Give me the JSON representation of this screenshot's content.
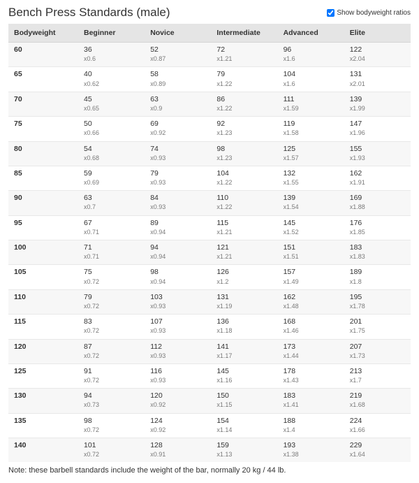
{
  "title": "Bench Press Standards (male)",
  "toggle_label": "Show bodyweight ratios",
  "toggle_checked": true,
  "columns": [
    "Bodyweight",
    "Beginner",
    "Novice",
    "Intermediate",
    "Advanced",
    "Elite"
  ],
  "rows": [
    {
      "bw": "60",
      "cells": [
        [
          "36",
          "x0.6"
        ],
        [
          "52",
          "x0.87"
        ],
        [
          "72",
          "x1.21"
        ],
        [
          "96",
          "x1.6"
        ],
        [
          "122",
          "x2.04"
        ]
      ]
    },
    {
      "bw": "65",
      "cells": [
        [
          "40",
          "x0.62"
        ],
        [
          "58",
          "x0.89"
        ],
        [
          "79",
          "x1.22"
        ],
        [
          "104",
          "x1.6"
        ],
        [
          "131",
          "x2.01"
        ]
      ]
    },
    {
      "bw": "70",
      "cells": [
        [
          "45",
          "x0.65"
        ],
        [
          "63",
          "x0.9"
        ],
        [
          "86",
          "x1.22"
        ],
        [
          "111",
          "x1.59"
        ],
        [
          "139",
          "x1.99"
        ]
      ]
    },
    {
      "bw": "75",
      "cells": [
        [
          "50",
          "x0.66"
        ],
        [
          "69",
          "x0.92"
        ],
        [
          "92",
          "x1.23"
        ],
        [
          "119",
          "x1.58"
        ],
        [
          "147",
          "x1.96"
        ]
      ]
    },
    {
      "bw": "80",
      "cells": [
        [
          "54",
          "x0.68"
        ],
        [
          "74",
          "x0.93"
        ],
        [
          "98",
          "x1.23"
        ],
        [
          "125",
          "x1.57"
        ],
        [
          "155",
          "x1.93"
        ]
      ]
    },
    {
      "bw": "85",
      "cells": [
        [
          "59",
          "x0.69"
        ],
        [
          "79",
          "x0.93"
        ],
        [
          "104",
          "x1.22"
        ],
        [
          "132",
          "x1.55"
        ],
        [
          "162",
          "x1.91"
        ]
      ]
    },
    {
      "bw": "90",
      "cells": [
        [
          "63",
          "x0.7"
        ],
        [
          "84",
          "x0.93"
        ],
        [
          "110",
          "x1.22"
        ],
        [
          "139",
          "x1.54"
        ],
        [
          "169",
          "x1.88"
        ]
      ]
    },
    {
      "bw": "95",
      "cells": [
        [
          "67",
          "x0.71"
        ],
        [
          "89",
          "x0.94"
        ],
        [
          "115",
          "x1.21"
        ],
        [
          "145",
          "x1.52"
        ],
        [
          "176",
          "x1.85"
        ]
      ]
    },
    {
      "bw": "100",
      "cells": [
        [
          "71",
          "x0.71"
        ],
        [
          "94",
          "x0.94"
        ],
        [
          "121",
          "x1.21"
        ],
        [
          "151",
          "x1.51"
        ],
        [
          "183",
          "x1.83"
        ]
      ]
    },
    {
      "bw": "105",
      "cells": [
        [
          "75",
          "x0.72"
        ],
        [
          "98",
          "x0.94"
        ],
        [
          "126",
          "x1.2"
        ],
        [
          "157",
          "x1.49"
        ],
        [
          "189",
          "x1.8"
        ]
      ]
    },
    {
      "bw": "110",
      "cells": [
        [
          "79",
          "x0.72"
        ],
        [
          "103",
          "x0.93"
        ],
        [
          "131",
          "x1.19"
        ],
        [
          "162",
          "x1.48"
        ],
        [
          "195",
          "x1.78"
        ]
      ]
    },
    {
      "bw": "115",
      "cells": [
        [
          "83",
          "x0.72"
        ],
        [
          "107",
          "x0.93"
        ],
        [
          "136",
          "x1.18"
        ],
        [
          "168",
          "x1.46"
        ],
        [
          "201",
          "x1.75"
        ]
      ]
    },
    {
      "bw": "120",
      "cells": [
        [
          "87",
          "x0.72"
        ],
        [
          "112",
          "x0.93"
        ],
        [
          "141",
          "x1.17"
        ],
        [
          "173",
          "x1.44"
        ],
        [
          "207",
          "x1.73"
        ]
      ]
    },
    {
      "bw": "125",
      "cells": [
        [
          "91",
          "x0.72"
        ],
        [
          "116",
          "x0.93"
        ],
        [
          "145",
          "x1.16"
        ],
        [
          "178",
          "x1.43"
        ],
        [
          "213",
          "x1.7"
        ]
      ]
    },
    {
      "bw": "130",
      "cells": [
        [
          "94",
          "x0.73"
        ],
        [
          "120",
          "x0.92"
        ],
        [
          "150",
          "x1.15"
        ],
        [
          "183",
          "x1.41"
        ],
        [
          "219",
          "x1.68"
        ]
      ]
    },
    {
      "bw": "135",
      "cells": [
        [
          "98",
          "x0.72"
        ],
        [
          "124",
          "x0.92"
        ],
        [
          "154",
          "x1.14"
        ],
        [
          "188",
          "x1.4"
        ],
        [
          "224",
          "x1.66"
        ]
      ]
    },
    {
      "bw": "140",
      "cells": [
        [
          "101",
          "x0.72"
        ],
        [
          "128",
          "x0.91"
        ],
        [
          "159",
          "x1.13"
        ],
        [
          "193",
          "x1.38"
        ],
        [
          "229",
          "x1.64"
        ]
      ]
    }
  ],
  "note": "Note: these barbell standards include the weight of the bar, normally 20 kg / 44 lb.",
  "colors": {
    "header_bg": "#e5e5e5",
    "row_alt_bg": "#f7f7f7",
    "text": "#333333",
    "ratio_text": "#7a7a7a",
    "border": "#e8e8e8"
  },
  "typography": {
    "title_fontsize": 17,
    "cell_fontsize": 10.5,
    "ratio_fontsize": 9,
    "note_fontsize": 11
  }
}
